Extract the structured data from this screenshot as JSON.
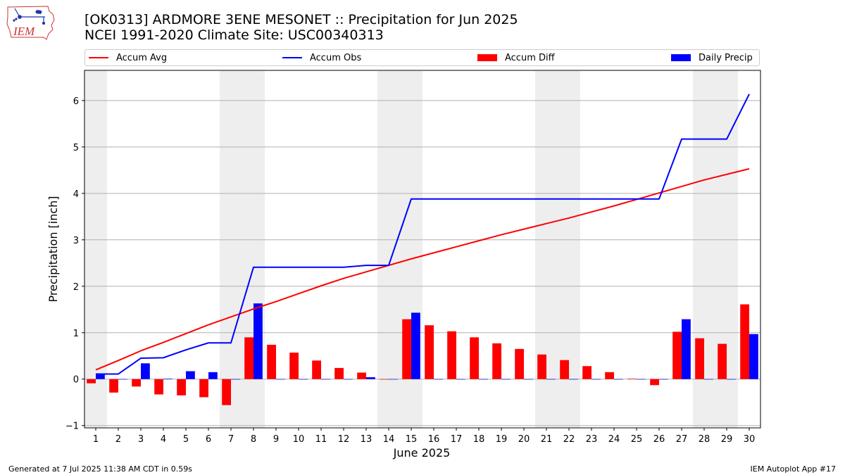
{
  "header": {
    "title_line1": "[OK0313] ARDMORE 3ENE MESONET :: Precipitation for Jun 2025",
    "title_line2": "NCEI 1991-2020 Climate Site: USC00340313"
  },
  "logo": {
    "text": "IEM",
    "icon": "iem-iowa-logo"
  },
  "footer": {
    "left": "Generated at 7 Jul 2025 11:38 AM CDT in 0.59s",
    "right": "IEM Autoplot App #17"
  },
  "colors": {
    "accum_avg": "#ff0000",
    "accum_obs": "#0000ff",
    "accum_diff": "#ff0000",
    "daily_precip": "#0000ff",
    "weekend_shade": "#eeeeee",
    "grid": "#b0b0b0"
  },
  "chart_data": {
    "type": "bar",
    "xlabel": "June 2025",
    "ylabel": "Precipitation [inch]",
    "ylim": [
      -1.05,
      6.65
    ],
    "xlim": [
      0.5,
      30.5
    ],
    "y_ticks": [
      -1,
      0,
      1,
      2,
      3,
      4,
      5,
      6
    ],
    "categories": [
      1,
      2,
      3,
      4,
      5,
      6,
      7,
      8,
      9,
      10,
      11,
      12,
      13,
      14,
      15,
      16,
      17,
      18,
      19,
      20,
      21,
      22,
      23,
      24,
      25,
      26,
      27,
      28,
      29,
      30
    ],
    "grid": "horizontal",
    "legend_position": "top",
    "weekend_days": [
      1,
      7,
      8,
      14,
      15,
      21,
      22,
      28,
      29
    ],
    "series": [
      {
        "name": "Accum Avg",
        "kind": "line",
        "values": [
          0.2,
          0.4,
          0.61,
          0.79,
          0.98,
          1.17,
          1.34,
          1.51,
          1.67,
          1.84,
          2.01,
          2.17,
          2.31,
          2.45,
          2.59,
          2.72,
          2.85,
          2.98,
          3.11,
          3.23,
          3.35,
          3.47,
          3.6,
          3.73,
          3.87,
          4.01,
          4.15,
          4.29,
          4.41,
          4.53
        ]
      },
      {
        "name": "Accum Obs",
        "kind": "line",
        "values": [
          0.11,
          0.11,
          0.45,
          0.46,
          0.63,
          0.78,
          0.78,
          2.41,
          2.41,
          2.41,
          2.41,
          2.41,
          2.45,
          2.45,
          3.88,
          3.88,
          3.88,
          3.88,
          3.88,
          3.88,
          3.88,
          3.88,
          3.88,
          3.88,
          3.88,
          3.88,
          5.17,
          5.17,
          5.17,
          6.14
        ]
      },
      {
        "name": "Accum Diff",
        "kind": "bar",
        "offset": "left",
        "values": [
          -0.09,
          -0.29,
          -0.16,
          -0.33,
          -0.35,
          -0.39,
          -0.56,
          0.9,
          0.74,
          0.57,
          0.4,
          0.24,
          0.14,
          0.0,
          1.29,
          1.16,
          1.03,
          0.9,
          0.77,
          0.65,
          0.53,
          0.41,
          0.28,
          0.15,
          0.01,
          -0.13,
          1.02,
          0.88,
          0.76,
          1.61
        ]
      },
      {
        "name": "Daily Precip",
        "kind": "bar",
        "offset": "right",
        "values": [
          0.11,
          0.0,
          0.34,
          0.01,
          0.17,
          0.15,
          0.0,
          1.63,
          0.0,
          0.0,
          0.0,
          0.0,
          0.04,
          0.0,
          1.43,
          0.0,
          0.0,
          0.0,
          0.0,
          0.0,
          0.0,
          0.0,
          0.0,
          0.0,
          0.0,
          0.0,
          1.29,
          0.0,
          0.0,
          0.97
        ]
      }
    ]
  }
}
